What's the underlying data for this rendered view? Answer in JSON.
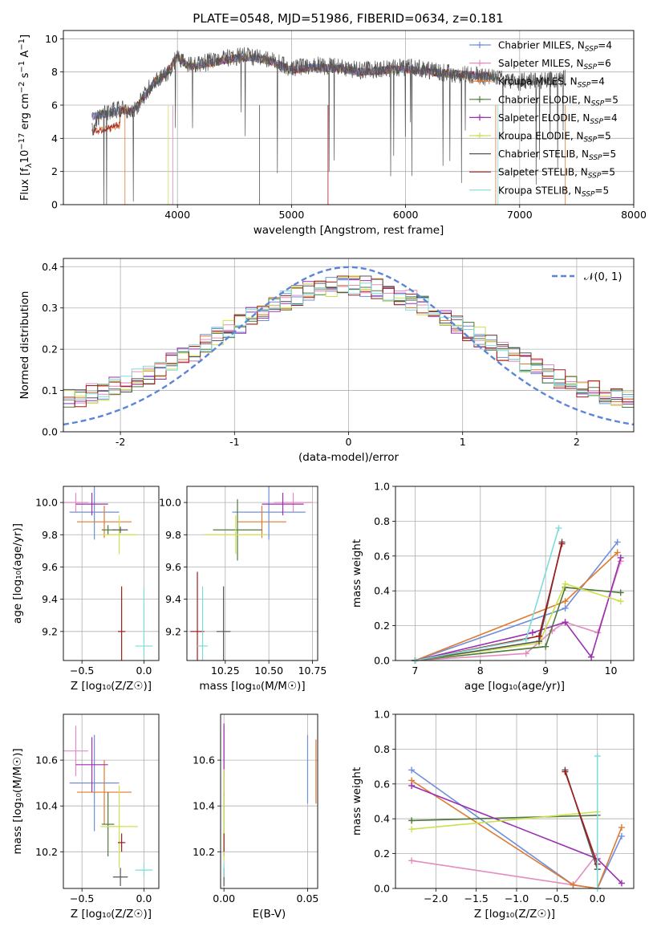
{
  "figure_title": "PLATE=0548, MJD=51986, FIBERID=0634, z=0.181",
  "colors": {
    "Chabrier MILES": "#6f8fdd",
    "Salpeter MILES": "#e48bbf",
    "Kroupa MILES": "#e07a2f",
    "Chabrier ELODIE": "#4d7a3c",
    "Salpeter ELODIE": "#9b2fb2",
    "Kroupa ELODIE": "#cde04e",
    "Chabrier STELIB": "#555555",
    "Salpeter STELIB": "#a01c1c",
    "Kroupa STELIB": "#7fdbdb",
    "normal": "#5b86d6",
    "grid": "#b0b0b0"
  },
  "legend": [
    {
      "label": "Chabrier MILES, N",
      "sub": "SSP",
      "rest": "=4"
    },
    {
      "label": "Salpeter MILES, N",
      "sub": "SSP",
      "rest": "=6"
    },
    {
      "label": "Kroupa MILES, N",
      "sub": "SSP",
      "rest": "=4"
    },
    {
      "label": "Chabrier ELODIE, N",
      "sub": "SSP",
      "rest": "=5"
    },
    {
      "label": "Salpeter ELODIE, N",
      "sub": "SSP",
      "rest": "=4"
    },
    {
      "label": "Kroupa ELODIE, N",
      "sub": "SSP",
      "rest": "=5"
    },
    {
      "label": "Chabrier STELIB, N",
      "sub": "SSP",
      "rest": "=5"
    },
    {
      "label": "Salpeter STELIB, N",
      "sub": "SSP",
      "rest": "=5"
    },
    {
      "label": "Kroupa STELIB, N",
      "sub": "SSP",
      "rest": "=5"
    }
  ],
  "chart_data": [
    {
      "id": "spectrum",
      "type": "line",
      "xlabel": "wavelength [Angstrom, rest frame]",
      "ylabel_parts": [
        "Flux [f",
        "λ",
        "10",
        "−17",
        " erg cm",
        "−2",
        " s",
        "−1",
        " A",
        "−1",
        "]"
      ],
      "xlim": [
        3000,
        8000
      ],
      "ylim": [
        0,
        10.5
      ],
      "xticks": [
        4000,
        5000,
        6000,
        7000,
        8000
      ],
      "yticks": [
        0,
        2,
        4,
        6,
        8,
        10
      ],
      "series": [
        {
          "name": "data",
          "x": [
            3250,
            3300,
            3400,
            3500,
            3600,
            3700,
            3800,
            3900,
            4000,
            4100,
            4200,
            4400,
            4600,
            4800,
            5000,
            5200,
            5400,
            5600,
            5800,
            6000,
            6200,
            6400,
            6600,
            6800,
            7000,
            7200,
            7400
          ],
          "y": [
            4.5,
            5.2,
            5.6,
            5.8,
            5.5,
            6.5,
            7.5,
            7.8,
            9.0,
            8.4,
            8.5,
            8.8,
            9.0,
            8.8,
            8.2,
            8.4,
            8.3,
            8.1,
            8.2,
            8.3,
            8.1,
            7.9,
            7.8,
            7.6,
            7.4,
            7.5,
            7.6
          ]
        },
        {
          "name": "model",
          "x": [
            3250,
            3300,
            3400,
            3500,
            3600,
            3700,
            3800,
            3900,
            4000,
            4100,
            4200,
            4400,
            4600,
            4800,
            5000,
            5200,
            5400,
            5600,
            5800,
            6000,
            6200,
            6400,
            6600,
            6800
          ],
          "y": [
            5.3,
            5.4,
            5.5,
            5.7,
            5.6,
            6.4,
            7.4,
            7.9,
            8.9,
            8.3,
            8.4,
            8.7,
            8.9,
            8.7,
            8.1,
            8.3,
            8.2,
            8.0,
            8.1,
            8.2,
            8.0,
            7.9,
            7.8,
            7.7
          ]
        }
      ]
    },
    {
      "id": "residuals",
      "type": "line",
      "xlabel": "(data-model)/error",
      "ylabel": "Normed distribution",
      "xlim": [
        -2.5,
        2.5
      ],
      "ylim": [
        0,
        0.42
      ],
      "xticks": [
        -2,
        -1,
        0,
        1,
        2
      ],
      "yticks": [
        0.0,
        0.1,
        0.2,
        0.3,
        0.4
      ],
      "legend": "𝒩(0, 1)",
      "series": [
        {
          "name": "𝒩(0, 1)",
          "mean": 0,
          "sigma": 1
        }
      ]
    },
    {
      "id": "age_Z",
      "type": "scatter",
      "xlabel": "Z [log₁₀(Z/Z☉)]",
      "ylabel": "age  [log₁₀(age/yr)]",
      "xlim": [
        -0.65,
        0.12
      ],
      "ylim": [
        9.02,
        10.1
      ],
      "xticks": [
        -0.5,
        0.0
      ],
      "xticklabels": [
        "−0.5",
        "0.0"
      ],
      "yticks": [
        9.2,
        9.4,
        9.6,
        9.8,
        10.0
      ],
      "points": [
        {
          "x": -0.4,
          "y": 9.94,
          "ex": 0.2,
          "ey": 0.17
        },
        {
          "x": -0.55,
          "y": 10.0,
          "ex": 0.1,
          "ey": 0.06
        },
        {
          "x": -0.32,
          "y": 9.88,
          "ex": 0.22,
          "ey": 0.1
        },
        {
          "x": -0.29,
          "y": 9.83,
          "ex": 0.05,
          "ey": 0.03
        },
        {
          "x": -0.42,
          "y": 9.99,
          "ex": 0.13,
          "ey": 0.07
        },
        {
          "x": -0.2,
          "y": 9.8,
          "ex": 0.15,
          "ey": 0.12
        },
        {
          "x": -0.19,
          "y": 9.83,
          "ex": 0.06,
          "ey": 0.02
        },
        {
          "x": -0.18,
          "y": 9.2,
          "ex": 0.03,
          "ey": 0.28
        },
        {
          "x": 0.0,
          "y": 9.11,
          "ex": 0.07,
          "ey": 0.37
        }
      ]
    },
    {
      "id": "age_mass",
      "type": "scatter",
      "xlabel": "mass [log₁₀(M/M☉)]",
      "ylabel": "",
      "xlim": [
        10.03,
        10.78
      ],
      "ylim": [
        9.02,
        10.1
      ],
      "xticks": [
        10.25,
        10.5,
        10.75
      ],
      "xticklabels": [
        "10.25",
        "10.50",
        "10.75"
      ],
      "yticks": [
        9.2,
        9.4,
        9.6,
        9.8,
        10.0
      ],
      "points": [
        {
          "x": 10.5,
          "y": 9.94,
          "ex": 0.21,
          "ey": 0.17
        },
        {
          "x": 10.64,
          "y": 10.0,
          "ex": 0.11,
          "ey": 0.06
        },
        {
          "x": 10.46,
          "y": 9.88,
          "ex": 0.14,
          "ey": 0.1
        },
        {
          "x": 10.32,
          "y": 9.83,
          "ex": 0.14,
          "ey": 0.19
        },
        {
          "x": 10.58,
          "y": 9.99,
          "ex": 0.12,
          "ey": 0.07
        },
        {
          "x": 10.31,
          "y": 9.8,
          "ex": 0.18,
          "ey": 0.12
        },
        {
          "x": 10.24,
          "y": 9.2,
          "ex": 0.04,
          "ey": 0.28
        },
        {
          "x": 10.09,
          "y": 9.2,
          "ex": 0.04,
          "ey": 0.37
        },
        {
          "x": 10.12,
          "y": 9.11,
          "ex": 0.03,
          "ey": 0.37
        }
      ]
    },
    {
      "id": "mw_age",
      "type": "line",
      "xlabel": "age  [log₁₀(age/yr)]",
      "ylabel": "mass weight",
      "xlim": [
        6.7,
        10.35
      ],
      "ylim": [
        0,
        1
      ],
      "xticks": [
        7,
        8,
        9,
        10
      ],
      "yticks": [
        0.0,
        0.2,
        0.4,
        0.6,
        0.8,
        1.0
      ],
      "series": [
        {
          "name": "Chabrier MILES",
          "x": [
            7.0,
            9.3,
            10.1
          ],
          "y": [
            0.0,
            0.3,
            0.68
          ]
        },
        {
          "name": "Salpeter MILES",
          "x": [
            7.0,
            8.7,
            9.1,
            9.3,
            9.8,
            10.15
          ],
          "y": [
            0.0,
            0.04,
            0.17,
            0.22,
            0.16,
            0.57
          ]
        },
        {
          "name": "Kroupa MILES",
          "x": [
            7.0,
            9.3,
            10.1
          ],
          "y": [
            0.0,
            0.34,
            0.62
          ]
        },
        {
          "name": "Chabrier ELODIE",
          "x": [
            7.0,
            9.0,
            9.3,
            10.15
          ],
          "y": [
            0.0,
            0.08,
            0.42,
            0.39
          ]
        },
        {
          "name": "Salpeter ELODIE",
          "x": [
            7.0,
            8.8,
            9.3,
            9.7,
            10.15
          ],
          "y": [
            0.0,
            0.16,
            0.22,
            0.02,
            0.59
          ]
        },
        {
          "name": "Kroupa ELODIE",
          "x": [
            7.0,
            8.9,
            9.3,
            10.15
          ],
          "y": [
            0.0,
            0.1,
            0.44,
            0.34
          ]
        },
        {
          "name": "Chabrier STELIB",
          "x": [
            7.0,
            8.9,
            9.25
          ],
          "y": [
            0.0,
            0.11,
            0.68
          ]
        },
        {
          "name": "Salpeter STELIB",
          "x": [
            7.0,
            8.9,
            9.25
          ],
          "y": [
            0.0,
            0.14,
            0.67
          ]
        },
        {
          "name": "Kroupa STELIB",
          "x": [
            7.0,
            8.7,
            9.2
          ],
          "y": [
            0.0,
            0.12,
            0.76
          ]
        }
      ]
    },
    {
      "id": "mass_Z",
      "type": "scatter",
      "xlabel": "Z [log₁₀(Z/Z☉)]",
      "ylabel": "mass [log₁₀(M/M☉)]",
      "xlim": [
        -0.65,
        0.12
      ],
      "ylim": [
        10.04,
        10.8
      ],
      "xticks": [
        -0.5,
        0.0
      ],
      "xticklabels": [
        "−0.5",
        "0.0"
      ],
      "yticks": [
        10.2,
        10.4,
        10.6
      ],
      "points": [
        {
          "x": -0.4,
          "y": 10.5,
          "ex": 0.2,
          "ey": 0.21
        },
        {
          "x": -0.55,
          "y": 10.64,
          "ex": 0.1,
          "ey": 0.11
        },
        {
          "x": -0.32,
          "y": 10.46,
          "ex": 0.22,
          "ey": 0.14
        },
        {
          "x": -0.29,
          "y": 10.32,
          "ex": 0.05,
          "ey": 0.14
        },
        {
          "x": -0.42,
          "y": 10.58,
          "ex": 0.13,
          "ey": 0.12
        },
        {
          "x": -0.2,
          "y": 10.31,
          "ex": 0.15,
          "ey": 0.18
        },
        {
          "x": -0.19,
          "y": 10.09,
          "ex": 0.06,
          "ey": 0.04
        },
        {
          "x": -0.18,
          "y": 10.24,
          "ex": 0.03,
          "ey": 0.04
        },
        {
          "x": 0.0,
          "y": 10.12,
          "ex": 0.07,
          "ey": 0.03
        }
      ]
    },
    {
      "id": "mass_ebv",
      "type": "scatter",
      "xlabel": "E(B-V)",
      "ylabel": "",
      "xlim": [
        -0.002,
        0.056
      ],
      "ylim": [
        10.04,
        10.8
      ],
      "xticks": [
        0.0,
        0.05
      ],
      "xticklabels": [
        "0.00",
        "0.05"
      ],
      "yticks": [
        10.2,
        10.4,
        10.6
      ],
      "points": [
        {
          "x": 0.05,
          "y": 10.56,
          "ex": 0,
          "ey": 0.15
        },
        {
          "x": 0.0,
          "y": 10.64,
          "ex": 0,
          "ey": 0.11
        },
        {
          "x": 0.055,
          "y": 10.55,
          "ex": 0,
          "ey": 0.14
        },
        {
          "x": 0.0,
          "y": 10.32,
          "ex": 0,
          "ey": 0.14
        },
        {
          "x": 0.0,
          "y": 10.6,
          "ex": 0,
          "ey": 0.16
        },
        {
          "x": 0.0,
          "y": 10.36,
          "ex": 0,
          "ey": 0.2
        },
        {
          "x": 0.0,
          "y": 10.09,
          "ex": 0,
          "ey": 0.04
        },
        {
          "x": 0.0,
          "y": 10.24,
          "ex": 0,
          "ey": 0.04
        },
        {
          "x": 0.0,
          "y": 10.12,
          "ex": 0,
          "ey": 0.03
        }
      ]
    },
    {
      "id": "mw_Z",
      "type": "line",
      "xlabel": "Z [log₁₀(Z/Z☉)]",
      "ylabel": "mass weight",
      "xlim": [
        -2.5,
        0.45
      ],
      "ylim": [
        0,
        1
      ],
      "xticks": [
        -2.0,
        -1.5,
        -1.0,
        -0.5,
        0.0
      ],
      "xticklabels": [
        "−2.0",
        "−1.5",
        "−1.0",
        "−0.5",
        "0.0"
      ],
      "yticks": [
        0.0,
        0.2,
        0.4,
        0.6,
        0.8,
        1.0
      ],
      "series": [
        {
          "name": "Chabrier MILES",
          "x": [
            -2.3,
            -0.3,
            0.0,
            0.3
          ],
          "y": [
            0.68,
            0.02,
            0.0,
            0.3
          ]
        },
        {
          "name": "Salpeter MILES",
          "x": [
            -2.3,
            -0.3,
            0.0
          ],
          "y": [
            0.16,
            0.02,
            0.2
          ]
        },
        {
          "name": "Kroupa MILES",
          "x": [
            -2.3,
            -0.3,
            0.0,
            0.3
          ],
          "y": [
            0.62,
            0.02,
            0.0,
            0.35
          ]
        },
        {
          "name": "Chabrier ELODIE",
          "x": [
            -2.3,
            0.0
          ],
          "y": [
            0.39,
            0.42
          ]
        },
        {
          "name": "Salpeter ELODIE",
          "x": [
            -2.3,
            0.0,
            0.3
          ],
          "y": [
            0.59,
            0.17,
            0.03
          ]
        },
        {
          "name": "Kroupa ELODIE",
          "x": [
            -2.3,
            0.0
          ],
          "y": [
            0.34,
            0.44
          ]
        },
        {
          "name": "Chabrier STELIB",
          "x": [
            -0.4,
            0.0
          ],
          "y": [
            0.68,
            0.11
          ]
        },
        {
          "name": "Salpeter STELIB",
          "x": [
            -0.4,
            0.0
          ],
          "y": [
            0.67,
            0.14
          ]
        },
        {
          "name": "Kroupa STELIB",
          "x": [
            0.0,
            0.0
          ],
          "y": [
            0.76,
            0.0
          ]
        }
      ]
    }
  ]
}
